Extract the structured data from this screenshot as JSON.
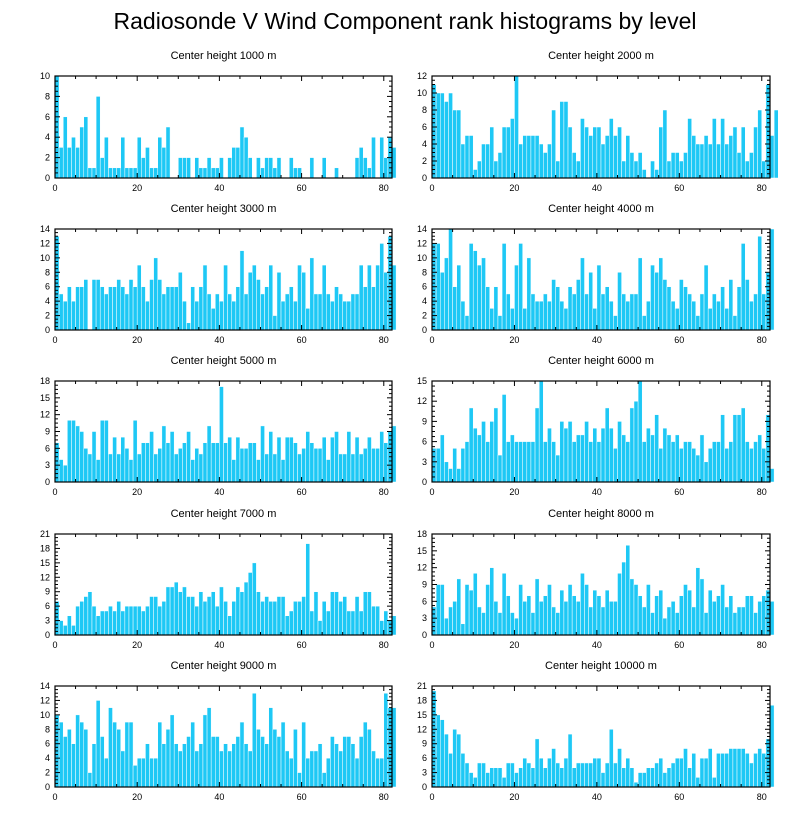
{
  "title": "Radiosonde V Wind Component rank histograms by level",
  "colors": {
    "bar": "#1ec8f5",
    "bar_edge": "#ffffff",
    "axis": "#000000"
  },
  "chart_data": [
    {
      "type": "bar",
      "title": "Center height 1000 m",
      "ylim": [
        0,
        10
      ],
      "yticks": [
        0,
        2,
        4,
        6,
        8,
        10
      ],
      "xlim": [
        0,
        82
      ],
      "xticks": [
        0,
        20,
        40,
        60,
        80
      ],
      "values": [
        10,
        3,
        6,
        3,
        4,
        3,
        5,
        6,
        1,
        1,
        8,
        2,
        4,
        1,
        1,
        1,
        4,
        1,
        1,
        1,
        4,
        2,
        3,
        1,
        1,
        4,
        3,
        5,
        0,
        0,
        2,
        2,
        2,
        0,
        2,
        1,
        1,
        2,
        1,
        1,
        2,
        0,
        2,
        3,
        3,
        5,
        4,
        2,
        0,
        2,
        1,
        2,
        2,
        1,
        2,
        0,
        0,
        2,
        1,
        1,
        0,
        0,
        2,
        0,
        0,
        2,
        0,
        0,
        1,
        0,
        0,
        0,
        0,
        2,
        3,
        2,
        1,
        4,
        0,
        4,
        2,
        4,
        3
      ]
    },
    {
      "type": "bar",
      "title": "Center height 2000 m",
      "ylim": [
        0,
        12
      ],
      "yticks": [
        0,
        2,
        4,
        6,
        8,
        10,
        12
      ],
      "xlim": [
        0,
        82
      ],
      "xticks": [
        0,
        20,
        40,
        60,
        80
      ],
      "values": [
        11,
        10,
        10,
        9,
        10,
        8,
        8,
        4,
        5,
        5,
        1,
        2,
        4,
        4,
        6,
        2,
        3,
        6,
        6,
        7,
        12,
        4,
        5,
        5,
        5,
        5,
        4,
        3,
        4,
        8,
        2,
        9,
        9,
        6,
        3,
        2,
        7,
        6,
        5,
        6,
        6,
        4,
        5,
        7,
        5,
        6,
        2,
        5,
        3,
        2,
        3,
        1,
        0,
        2,
        1,
        6,
        8,
        2,
        3,
        3,
        2,
        3,
        7,
        5,
        4,
        4,
        5,
        4,
        7,
        4,
        7,
        4,
        5,
        6,
        3,
        6,
        2,
        3,
        6,
        8,
        2,
        11,
        5,
        8
      ]
    },
    {
      "type": "bar",
      "title": "Center height 3000 m",
      "ylim": [
        0,
        14
      ],
      "yticks": [
        0,
        2,
        4,
        6,
        8,
        10,
        12,
        14
      ],
      "xlim": [
        0,
        82
      ],
      "xticks": [
        0,
        20,
        40,
        60,
        80
      ],
      "values": [
        13,
        5,
        4,
        6,
        4,
        6,
        6,
        7,
        0,
        7,
        7,
        6,
        5,
        6,
        6,
        7,
        6,
        5,
        7,
        6,
        9,
        6,
        4,
        7,
        10,
        7,
        5,
        6,
        6,
        6,
        8,
        4,
        1,
        6,
        4,
        6,
        9,
        5,
        3,
        5,
        4,
        9,
        5,
        4,
        6,
        11,
        5,
        8,
        9,
        7,
        5,
        6,
        9,
        2,
        8,
        4,
        5,
        6,
        4,
        9,
        8,
        3,
        10,
        5,
        5,
        9,
        5,
        4,
        6,
        5,
        4,
        4,
        5,
        5,
        9,
        6,
        9,
        6,
        9,
        12,
        8,
        13,
        9
      ]
    },
    {
      "type": "bar",
      "title": "Center height 4000 m",
      "ylim": [
        0,
        14
      ],
      "yticks": [
        0,
        2,
        4,
        6,
        8,
        10,
        12,
        14
      ],
      "xlim": [
        0,
        82
      ],
      "xticks": [
        0,
        20,
        40,
        60,
        80
      ],
      "values": [
        12,
        12,
        8,
        10,
        14,
        6,
        9,
        4,
        2,
        12,
        11,
        9,
        10,
        6,
        3,
        6,
        2,
        12,
        5,
        3,
        9,
        12,
        3,
        10,
        5,
        4,
        4,
        5,
        4,
        7,
        6,
        4,
        3,
        6,
        5,
        7,
        10,
        5,
        8,
        3,
        9,
        5,
        6,
        4,
        2,
        8,
        5,
        4,
        5,
        5,
        10,
        2,
        4,
        9,
        8,
        10,
        7,
        6,
        4,
        3,
        7,
        6,
        5,
        4,
        2,
        5,
        9,
        3,
        5,
        4,
        6,
        3,
        7,
        2,
        6,
        12,
        7,
        4,
        5,
        13,
        5,
        8,
        14
      ]
    },
    {
      "type": "bar",
      "title": "Center height 5000 m",
      "ylim": [
        0,
        18
      ],
      "yticks": [
        0,
        3,
        6,
        9,
        12,
        15,
        18
      ],
      "xlim": [
        0,
        82
      ],
      "xticks": [
        0,
        20,
        40,
        60,
        80
      ],
      "values": [
        7,
        4,
        3,
        11,
        11,
        10,
        9,
        6,
        5,
        9,
        4,
        11,
        11,
        5,
        8,
        5,
        8,
        6,
        4,
        11,
        5,
        7,
        7,
        9,
        5,
        6,
        10,
        7,
        9,
        5,
        6,
        7,
        9,
        4,
        6,
        5,
        7,
        10,
        7,
        7,
        17,
        7,
        8,
        4,
        8,
        6,
        6,
        7,
        7,
        4,
        10,
        5,
        9,
        5,
        8,
        4,
        8,
        8,
        7,
        5,
        6,
        9,
        7,
        6,
        6,
        8,
        4,
        8,
        9,
        5,
        5,
        9,
        5,
        8,
        5,
        6,
        8,
        6,
        6,
        9,
        7,
        9,
        10
      ]
    },
    {
      "type": "bar",
      "title": "Center height 6000 m",
      "ylim": [
        0,
        15
      ],
      "yticks": [
        0,
        3,
        6,
        9,
        12,
        15
      ],
      "xlim": [
        0,
        82
      ],
      "xticks": [
        0,
        20,
        40,
        60,
        80
      ],
      "values": [
        5,
        5,
        7,
        3,
        2,
        5,
        2,
        5,
        6,
        11,
        8,
        7,
        9,
        6,
        9,
        11,
        4,
        13,
        6,
        7,
        6,
        6,
        6,
        6,
        6,
        11,
        15,
        6,
        8,
        6,
        4,
        9,
        8,
        9,
        6,
        7,
        7,
        9,
        6,
        8,
        6,
        8,
        11,
        8,
        5,
        9,
        7,
        6,
        11,
        12,
        15,
        6,
        8,
        7,
        10,
        5,
        8,
        7,
        6,
        7,
        5,
        6,
        6,
        5,
        4,
        7,
        3,
        5,
        6,
        6,
        10,
        5,
        6,
        10,
        10,
        11,
        6,
        5,
        6,
        7,
        5,
        10,
        2
      ]
    },
    {
      "type": "bar",
      "title": "Center height 7000 m",
      "ylim": [
        0,
        21
      ],
      "yticks": [
        0,
        3,
        6,
        9,
        12,
        15,
        18,
        21
      ],
      "xlim": [
        0,
        82
      ],
      "xticks": [
        0,
        20,
        40,
        60,
        80
      ],
      "values": [
        7,
        3,
        2,
        4,
        2,
        6,
        7,
        8,
        9,
        6,
        4,
        5,
        5,
        6,
        5,
        7,
        5,
        6,
        6,
        6,
        6,
        5,
        6,
        8,
        8,
        6,
        7,
        10,
        10,
        11,
        9,
        10,
        8,
        8,
        6,
        9,
        7,
        8,
        9,
        6,
        10,
        7,
        4,
        7,
        10,
        9,
        11,
        13,
        15,
        9,
        7,
        8,
        7,
        7,
        8,
        8,
        4,
        5,
        7,
        7,
        8,
        19,
        5,
        9,
        3,
        7,
        5,
        9,
        9,
        7,
        8,
        5,
        5,
        8,
        5,
        9,
        9,
        6,
        6,
        3,
        5,
        3,
        4
      ]
    },
    {
      "type": "bar",
      "title": "Center height 8000 m",
      "ylim": [
        0,
        18
      ],
      "yticks": [
        0,
        3,
        6,
        9,
        12,
        15,
        18
      ],
      "xlim": [
        0,
        82
      ],
      "xticks": [
        0,
        20,
        40,
        60,
        80
      ],
      "values": [
        5,
        9,
        9,
        3,
        5,
        6,
        10,
        2,
        9,
        8,
        11,
        5,
        4,
        9,
        12,
        6,
        4,
        11,
        7,
        4,
        3,
        9,
        6,
        7,
        4,
        10,
        6,
        7,
        9,
        5,
        4,
        8,
        6,
        9,
        7,
        6,
        11,
        9,
        5,
        8,
        7,
        5,
        8,
        6,
        6,
        11,
        13,
        16,
        10,
        9,
        7,
        5,
        9,
        4,
        7,
        8,
        3,
        5,
        6,
        4,
        7,
        9,
        8,
        5,
        12,
        10,
        4,
        8,
        6,
        7,
        9,
        5,
        7,
        4,
        5,
        5,
        7,
        7,
        4,
        6,
        7,
        8,
        6
      ]
    },
    {
      "type": "bar",
      "title": "Center height 9000 m",
      "ylim": [
        0,
        14
      ],
      "yticks": [
        0,
        2,
        4,
        6,
        8,
        10,
        12,
        14
      ],
      "xlim": [
        0,
        82
      ],
      "xticks": [
        0,
        20,
        40,
        60,
        80
      ],
      "values": [
        10,
        9,
        7,
        8,
        6,
        10,
        9,
        8,
        2,
        6,
        12,
        7,
        4,
        11,
        9,
        8,
        5,
        9,
        9,
        3,
        4,
        4,
        6,
        4,
        4,
        9,
        6,
        8,
        10,
        6,
        5,
        6,
        7,
        9,
        5,
        6,
        10,
        11,
        7,
        7,
        5,
        6,
        5,
        6,
        7,
        9,
        6,
        5,
        13,
        8,
        7,
        6,
        11,
        8,
        7,
        9,
        5,
        4,
        8,
        2,
        9,
        4,
        5,
        5,
        6,
        2,
        4,
        7,
        6,
        5,
        7,
        7,
        6,
        4,
        7,
        9,
        8,
        5,
        4,
        4,
        13,
        11,
        11
      ]
    },
    {
      "type": "bar",
      "title": "Center height 10000 m",
      "ylim": [
        0,
        21
      ],
      "yticks": [
        0,
        3,
        6,
        9,
        12,
        15,
        18,
        21
      ],
      "xlim": [
        0,
        82
      ],
      "xticks": [
        0,
        20,
        40,
        60,
        80
      ],
      "values": [
        20,
        15,
        14,
        11,
        7,
        12,
        11,
        7,
        5,
        3,
        2,
        5,
        5,
        3,
        4,
        4,
        4,
        2,
        5,
        5,
        3,
        4,
        6,
        5,
        4,
        10,
        6,
        4,
        6,
        8,
        5,
        4,
        6,
        11,
        4,
        5,
        5,
        5,
        5,
        6,
        6,
        3,
        5,
        12,
        5,
        8,
        4,
        6,
        4,
        1,
        3,
        3,
        4,
        4,
        5,
        6,
        3,
        4,
        5,
        6,
        6,
        8,
        4,
        7,
        2,
        6,
        6,
        8,
        2,
        7,
        7,
        7,
        8,
        8,
        8,
        8,
        7,
        5,
        7,
        8,
        7,
        10,
        17
      ]
    }
  ]
}
